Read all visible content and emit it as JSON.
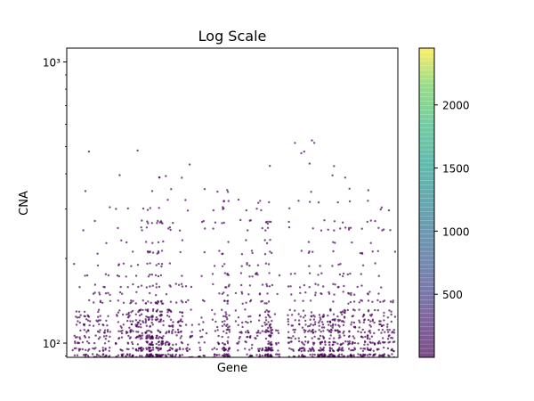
{
  "chart_data": {
    "type": "scatter",
    "title": "Log Scale",
    "xlabel": "Gene",
    "ylabel": "CNA",
    "yscale": "log",
    "ylim": [
      89,
      1120
    ],
    "xlim": [
      0,
      1
    ],
    "y_ticks": [
      {
        "value": 100,
        "label": "10²"
      },
      {
        "value": 1000,
        "label": "10³"
      }
    ],
    "x_ticks": [],
    "grid": false,
    "marker_color": "#440154",
    "colorbar": {
      "colormap": "viridis",
      "range": [
        0,
        2450
      ],
      "ticks": [
        500,
        1000,
        1500,
        2000
      ],
      "tick_labels": [
        "500",
        "1000",
        "1500",
        "2000"
      ]
    },
    "generator": {
      "columns": [
        {
          "x": 0.03,
          "n": 30
        },
        {
          "x": 0.06,
          "n": 40
        },
        {
          "x": 0.09,
          "n": 40
        },
        {
          "x": 0.12,
          "n": 45
        },
        {
          "x": 0.16,
          "n": 45
        },
        {
          "x": 0.19,
          "n": 55
        },
        {
          "x": 0.22,
          "n": 70
        },
        {
          "x": 0.25,
          "n": 120
        },
        {
          "x": 0.28,
          "n": 110
        },
        {
          "x": 0.31,
          "n": 60
        },
        {
          "x": 0.34,
          "n": 50
        },
        {
          "x": 0.37,
          "n": 25
        },
        {
          "x": 0.41,
          "n": 25
        },
        {
          "x": 0.45,
          "n": 30
        },
        {
          "x": 0.48,
          "n": 90
        },
        {
          "x": 0.52,
          "n": 25
        },
        {
          "x": 0.55,
          "n": 45
        },
        {
          "x": 0.58,
          "n": 40
        },
        {
          "x": 0.61,
          "n": 110
        },
        {
          "x": 0.64,
          "n": 15
        },
        {
          "x": 0.68,
          "n": 40
        },
        {
          "x": 0.71,
          "n": 50
        },
        {
          "x": 0.74,
          "n": 60
        },
        {
          "x": 0.77,
          "n": 70
        },
        {
          "x": 0.8,
          "n": 80
        },
        {
          "x": 0.83,
          "n": 70
        },
        {
          "x": 0.86,
          "n": 60
        },
        {
          "x": 0.89,
          "n": 50
        },
        {
          "x": 0.92,
          "n": 60
        },
        {
          "x": 0.95,
          "n": 50
        },
        {
          "x": 0.98,
          "n": 40
        }
      ],
      "column_spread": 0.012,
      "y_values": [
        {
          "value": 90,
          "weight": 22
        },
        {
          "value": 95,
          "weight": 16
        },
        {
          "value": 100,
          "weight": 12
        },
        {
          "value": 105,
          "weight": 10
        },
        {
          "value": 110,
          "weight": 10
        },
        {
          "value": 115,
          "weight": 8
        },
        {
          "value": 120,
          "weight": 8
        },
        {
          "value": 125,
          "weight": 6
        },
        {
          "value": 130,
          "weight": 6
        },
        {
          "value": 140,
          "weight": 6
        },
        {
          "value": 150,
          "weight": 4
        },
        {
          "value": 160,
          "weight": 4
        },
        {
          "value": 175,
          "weight": 3
        },
        {
          "value": 190,
          "weight": 2
        },
        {
          "value": 210,
          "weight": 2
        },
        {
          "value": 230,
          "weight": 2
        },
        {
          "value": 255,
          "weight": 2
        },
        {
          "value": 270,
          "weight": 2
        },
        {
          "value": 300,
          "weight": 1.5
        },
        {
          "value": 320,
          "weight": 1
        },
        {
          "value": 350,
          "weight": 1
        },
        {
          "value": 390,
          "weight": 0.6
        },
        {
          "value": 430,
          "weight": 0.5
        },
        {
          "value": 480,
          "weight": 0.3
        },
        {
          "value": 520,
          "weight": 0.3
        },
        {
          "value": 640,
          "weight": 0.2
        }
      ]
    }
  }
}
